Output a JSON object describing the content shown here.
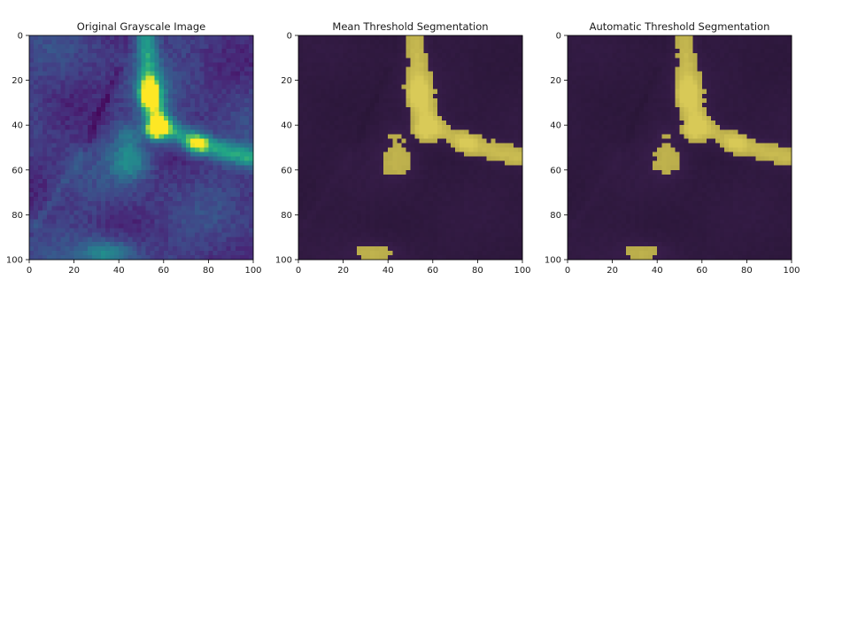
{
  "chart_data": [
    {
      "type": "heatmap",
      "title": "Original Grayscale Image",
      "colormap": "viridis",
      "xlim": [
        0,
        100
      ],
      "ylim": [
        100,
        0
      ],
      "xticks": [
        "0",
        "20",
        "40",
        "60",
        "80",
        "100"
      ],
      "yticks": [
        "0",
        "20",
        "40",
        "60",
        "80",
        "100"
      ]
    },
    {
      "type": "heatmap",
      "title": "Mean Threshold Segmentation",
      "colormap": "viridis-overlay",
      "mask_color": "#d8c95c",
      "background_color": "#331b44",
      "xlim": [
        0,
        100
      ],
      "ylim": [
        100,
        0
      ],
      "xticks": [
        "0",
        "20",
        "40",
        "60",
        "80",
        "100"
      ],
      "yticks": [
        "0",
        "20",
        "40",
        "60",
        "80",
        "100"
      ]
    },
    {
      "type": "heatmap",
      "title": "Automatic Threshold Segmentation",
      "colormap": "viridis-overlay",
      "mask_color": "#d8c95c",
      "background_color": "#331b44",
      "xlim": [
        0,
        100
      ],
      "ylim": [
        100,
        0
      ],
      "xticks": [
        "0",
        "20",
        "40",
        "60",
        "80",
        "100"
      ],
      "yticks": [
        "0",
        "20",
        "40",
        "60",
        "80",
        "100"
      ]
    }
  ]
}
